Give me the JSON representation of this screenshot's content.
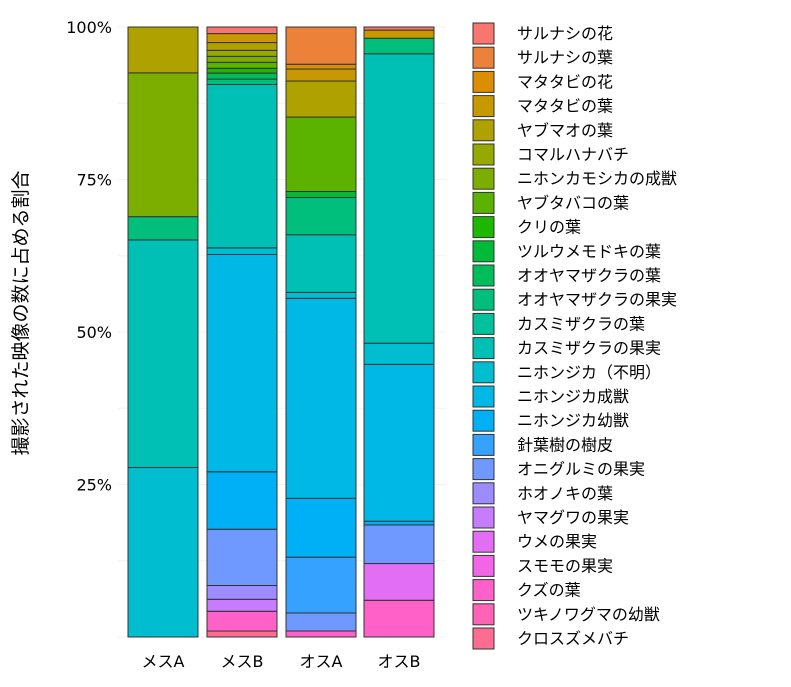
{
  "chart_data": {
    "type": "bar",
    "stacked": true,
    "normalized": true,
    "ylabel": "撮影された映像の数に占める割合",
    "xlabel": "",
    "title": "",
    "ylim": [
      0,
      100
    ],
    "y_ticks": [
      "100%",
      "75%",
      "50%",
      "25%"
    ],
    "y_tick_values": [
      100,
      75,
      50,
      25
    ],
    "grid": false,
    "legend_position": "right",
    "categories": [
      "メスA",
      "メスB",
      "オスA",
      "オスB"
    ],
    "series": [
      {
        "name": "サルナシの花",
        "color": "#F8766D",
        "values": [
          0,
          1.1,
          0,
          0.5
        ]
      },
      {
        "name": "サルナシの葉",
        "color": "#EC8239",
        "values": [
          0,
          0,
          6.2,
          0
        ]
      },
      {
        "name": "マタタビの花",
        "color": "#DB8E00",
        "values": [
          0,
          0,
          0.8,
          0
        ]
      },
      {
        "name": "マタタビの葉",
        "color": "#C79800",
        "values": [
          0,
          1.5,
          2.0,
          1.3
        ]
      },
      {
        "name": "ヤブマオの葉",
        "color": "#AFA100",
        "values": [
          7.5,
          1.3,
          6.0,
          0
        ]
      },
      {
        "name": "コマルハナバチ",
        "color": "#96A900",
        "values": [
          0,
          1.0,
          0,
          0
        ]
      },
      {
        "name": "ニホンカモシカの成獣",
        "color": "#7CAE00",
        "values": [
          23.5,
          1.0,
          0,
          0
        ]
      },
      {
        "name": "ヤブタバコの葉",
        "color": "#5BB300",
        "values": [
          0,
          1.0,
          12.4,
          0
        ]
      },
      {
        "name": "クリの葉",
        "color": "#1DB700",
        "values": [
          0,
          0.8,
          0,
          0
        ]
      },
      {
        "name": "ツルウメモドキの葉",
        "color": "#00BA38",
        "values": [
          0,
          0,
          1.0,
          0
        ]
      },
      {
        "name": "オオヤマザクラの葉",
        "color": "#00BD5C",
        "values": [
          0,
          1.0,
          0,
          0
        ]
      },
      {
        "name": "オオヤマザクラの果実",
        "color": "#00BF7D",
        "values": [
          3.8,
          0.9,
          6.2,
          2.5
        ]
      },
      {
        "name": "カスミザクラの葉",
        "color": "#00C19A",
        "values": [
          0,
          0,
          0,
          0
        ]
      },
      {
        "name": "カスミザクラの果実",
        "color": "#00C0B5",
        "values": [
          37.2,
          27.3,
          9.6,
          46.5
        ]
      },
      {
        "name": "ニホンジカ（不明）",
        "color": "#00BDD0",
        "values": [
          27.7,
          1.1,
          1.0,
          3.4
        ]
      },
      {
        "name": "ニホンジカ成獣",
        "color": "#00B8E5",
        "values": [
          0,
          36.3,
          33.3,
          25.2
        ]
      },
      {
        "name": "ニホンジカ幼獣",
        "color": "#00B0F6",
        "values": [
          0,
          9.6,
          9.8,
          0.6
        ]
      },
      {
        "name": "針葉樹の樹皮",
        "color": "#35A2FF",
        "values": [
          0,
          0,
          9.3,
          0
        ]
      },
      {
        "name": "オニグルミの果実",
        "color": "#6F99FF",
        "values": [
          0,
          9.4,
          3.0,
          6.2
        ]
      },
      {
        "name": "ホオノキの葉",
        "color": "#9C8CFF",
        "values": [
          0,
          2.3,
          0,
          0
        ]
      },
      {
        "name": "ヤマグワの果実",
        "color": "#C77CFF",
        "values": [
          0,
          2.0,
          0,
          0
        ]
      },
      {
        "name": "ウメの果実",
        "color": "#E36EF6",
        "values": [
          0,
          0,
          0,
          5.9
        ]
      },
      {
        "name": "スモモの果実",
        "color": "#F265E7",
        "values": [
          0,
          0,
          0,
          0
        ]
      },
      {
        "name": "クズの葉",
        "color": "#FF61C9",
        "values": [
          0,
          3.3,
          1.0,
          5.9
        ]
      },
      {
        "name": "ツキノワグマの幼獣",
        "color": "#FF63B6",
        "values": [
          0,
          0,
          0,
          0
        ]
      },
      {
        "name": "クロスズメバチ",
        "color": "#FF6C91",
        "values": [
          0,
          1.0,
          0,
          0
        ]
      }
    ]
  }
}
